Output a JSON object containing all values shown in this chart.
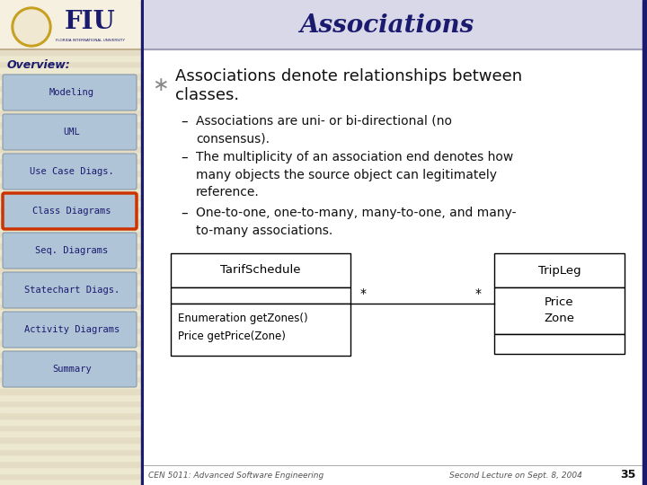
{
  "title": "Associations",
  "title_color": "#1a1a6e",
  "title_fontsize": 20,
  "bg_main": "#ffffff",
  "bg_left": "#e8dfc0",
  "bg_header": "#d8d8e8",
  "left_border_color": "#1a1a6e",
  "overview_label": "Overview:",
  "nav_items": [
    "Modeling",
    "UML",
    "Use Case Diags.",
    "Class Diagrams",
    "Seq. Diagrams",
    "Statechart Diags.",
    "Activity Diagrams",
    "Summary"
  ],
  "active_item": "Class Diagrams",
  "nav_bg": "#b0c4d8",
  "nav_active_border": "#cc3300",
  "nav_text_color": "#1a1a6e",
  "bullet_char": "∗",
  "uml_class1_name": "TarifSchedule",
  "uml_class1_methods": "Enumeration getZones()\nPrice getPrice(Zone)",
  "uml_class2_name": "TripLeg",
  "uml_class2_attrs": "Price\nZone",
  "uml_mult_left": "*",
  "uml_mult_right": "*",
  "footer_left": "CEN 5011: Advanced Software Engineering",
  "footer_right": "Second Lecture on Sept. 8, 2004",
  "footer_num": "35",
  "footer_color": "#555555",
  "text_color": "#111111",
  "fiu_logo_color": "#1a1a6e",
  "stripe_colors": [
    "#ede8d0",
    "#e4ddc4"
  ]
}
